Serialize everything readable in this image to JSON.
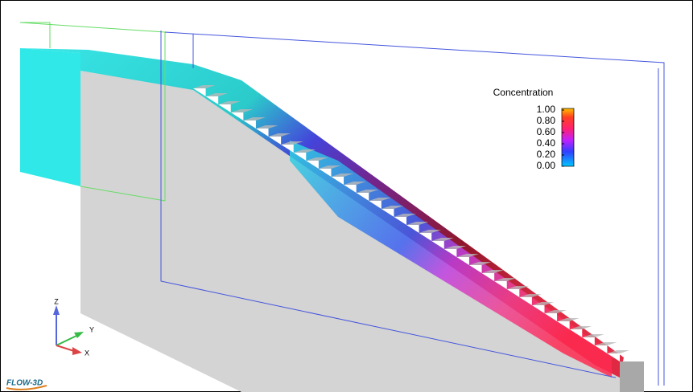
{
  "legend": {
    "title": "Concentration",
    "ticks": [
      {
        "value": 1,
        "label": "1.00"
      },
      {
        "value": 0.8,
        "label": "0.80"
      },
      {
        "value": 0.6,
        "label": "0.60"
      },
      {
        "value": 0.4,
        "label": "0.40"
      },
      {
        "value": 0.2,
        "label": "0.20"
      },
      {
        "value": 0,
        "label": "0.00"
      }
    ]
  },
  "triad": {
    "z": "Z",
    "y": "Y",
    "x": "X"
  },
  "logo": "FLOW-3D"
}
